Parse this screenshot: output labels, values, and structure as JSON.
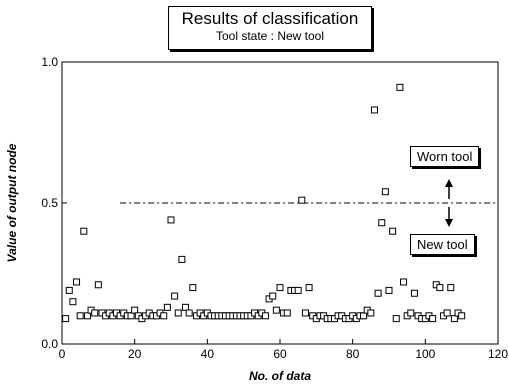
{
  "chart_data": {
    "type": "scatter",
    "title": "Results of classification",
    "subtitle": "Tool state : New tool",
    "xlabel": "No. of data",
    "ylabel": "Value of output node",
    "xlim": [
      0,
      120
    ],
    "ylim": [
      0.0,
      1.0
    ],
    "x_ticks": [
      "0",
      "20",
      "40",
      "60",
      "80",
      "100",
      "120"
    ],
    "y_ticks": [
      "0.0",
      "0.5",
      "1.0"
    ],
    "threshold": 0.5,
    "grid": false,
    "annotations": [
      "Worn tool",
      "New tool"
    ],
    "series": [
      {
        "marker": "open-square",
        "x": [
          1,
          2,
          3,
          4,
          5,
          6,
          7,
          8,
          9,
          10,
          11,
          12,
          13,
          14,
          15,
          16,
          17,
          18,
          19,
          20,
          21,
          22,
          23,
          24,
          25,
          26,
          27,
          28,
          29,
          30,
          31,
          32,
          33,
          34,
          35,
          36,
          37,
          38,
          39,
          40,
          41,
          42,
          43,
          44,
          45,
          46,
          47,
          48,
          49,
          50,
          51,
          52,
          53,
          54,
          55,
          56,
          57,
          58,
          59,
          60,
          61,
          62,
          63,
          64,
          65,
          66,
          67,
          68,
          69,
          70,
          71,
          72,
          73,
          74,
          75,
          76,
          77,
          78,
          79,
          80,
          81,
          82,
          83,
          84,
          85,
          86,
          87,
          88,
          89,
          90,
          91,
          92,
          93,
          94,
          95,
          96,
          97,
          98,
          99,
          100,
          101,
          102,
          103,
          104,
          105,
          106,
          107,
          108,
          109,
          110
        ],
        "y": [
          0.09,
          0.19,
          0.15,
          0.22,
          0.1,
          0.4,
          0.1,
          0.12,
          0.11,
          0.21,
          0.11,
          0.1,
          0.11,
          0.1,
          0.11,
          0.1,
          0.11,
          0.1,
          0.1,
          0.12,
          0.1,
          0.09,
          0.1,
          0.11,
          0.1,
          0.1,
          0.11,
          0.1,
          0.13,
          0.44,
          0.17,
          0.11,
          0.3,
          0.13,
          0.11,
          0.2,
          0.1,
          0.11,
          0.1,
          0.11,
          0.1,
          0.1,
          0.1,
          0.1,
          0.1,
          0.1,
          0.1,
          0.1,
          0.1,
          0.1,
          0.1,
          0.1,
          0.11,
          0.1,
          0.11,
          0.1,
          0.16,
          0.17,
          0.12,
          0.2,
          0.11,
          0.11,
          0.19,
          0.19,
          0.19,
          0.51,
          0.11,
          0.2,
          0.1,
          0.09,
          0.1,
          0.1,
          0.09,
          0.09,
          0.09,
          0.1,
          0.1,
          0.09,
          0.09,
          0.1,
          0.09,
          0.1,
          0.1,
          0.12,
          0.11,
          0.83,
          0.18,
          0.43,
          0.54,
          0.19,
          0.4,
          0.09,
          0.91,
          0.22,
          0.1,
          0.11,
          0.18,
          0.1,
          0.09,
          0.09,
          0.1,
          0.09,
          0.21,
          0.2,
          0.1,
          0.11,
          0.2,
          0.09,
          0.11,
          0.1
        ]
      }
    ]
  }
}
